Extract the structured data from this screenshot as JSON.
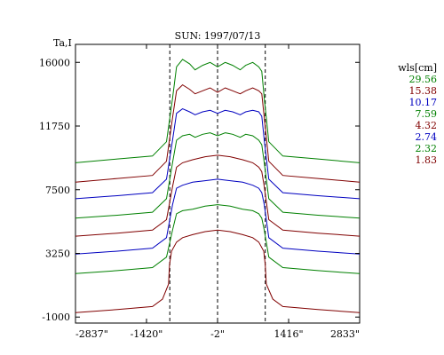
{
  "chart_data": {
    "type": "line",
    "title": "SUN: 1997/07/13",
    "ylabel": "Ta,I",
    "xlabel": "",
    "xlim": [
      -2837,
      2833
    ],
    "ylim": [
      -1400,
      17200
    ],
    "x_ticks": [
      {
        "value": -2837,
        "label": "-2837\""
      },
      {
        "value": -1420,
        "label": "-1420\""
      },
      {
        "value": -2,
        "label": "-2\""
      },
      {
        "value": 1416,
        "label": "1416\""
      },
      {
        "value": 2833,
        "label": "2833\""
      }
    ],
    "y_ticks": [
      {
        "value": 16000,
        "label": "16000"
      },
      {
        "value": 11750,
        "label": "11750"
      },
      {
        "value": 7500,
        "label": "7500"
      },
      {
        "value": 3250,
        "label": "3250"
      },
      {
        "value": -1000,
        "label": "-1000"
      }
    ],
    "vlines": [
      -955,
      -2,
      950
    ],
    "legend_title": "wls[cm]",
    "legend_position": "right",
    "grid": false,
    "series": [
      {
        "name": "29.56",
        "color": "#008000",
        "points": [
          [
            -2837,
            9300
          ],
          [
            -2000,
            9550
          ],
          [
            -1300,
            9750
          ],
          [
            -1020,
            10700
          ],
          [
            -900,
            13600
          ],
          [
            -820,
            15700
          ],
          [
            -700,
            16200
          ],
          [
            -560,
            15900
          ],
          [
            -450,
            15500
          ],
          [
            -300,
            15800
          ],
          [
            -150,
            16000
          ],
          [
            -2,
            15700
          ],
          [
            150,
            16000
          ],
          [
            300,
            15800
          ],
          [
            450,
            15500
          ],
          [
            560,
            15800
          ],
          [
            700,
            16000
          ],
          [
            820,
            15700
          ],
          [
            880,
            15400
          ],
          [
            930,
            13600
          ],
          [
            1020,
            10700
          ],
          [
            1300,
            9750
          ],
          [
            2000,
            9550
          ],
          [
            2833,
            9300
          ]
        ]
      },
      {
        "name": "15.38",
        "color": "#800000",
        "points": [
          [
            -2837,
            8000
          ],
          [
            -2000,
            8250
          ],
          [
            -1300,
            8450
          ],
          [
            -1020,
            9400
          ],
          [
            -900,
            12300
          ],
          [
            -820,
            14100
          ],
          [
            -700,
            14500
          ],
          [
            -560,
            14200
          ],
          [
            -450,
            13900
          ],
          [
            -300,
            14100
          ],
          [
            -150,
            14300
          ],
          [
            -2,
            14000
          ],
          [
            150,
            14300
          ],
          [
            300,
            14100
          ],
          [
            450,
            13900
          ],
          [
            560,
            14100
          ],
          [
            700,
            14300
          ],
          [
            820,
            14100
          ],
          [
            880,
            13900
          ],
          [
            930,
            12300
          ],
          [
            1020,
            9400
          ],
          [
            1300,
            8450
          ],
          [
            2000,
            8250
          ],
          [
            2833,
            8000
          ]
        ]
      },
      {
        "name": "10.17",
        "color": "#0000c0",
        "points": [
          [
            -2837,
            6900
          ],
          [
            -2000,
            7100
          ],
          [
            -1300,
            7300
          ],
          [
            -1020,
            8200
          ],
          [
            -900,
            10800
          ],
          [
            -820,
            12600
          ],
          [
            -700,
            12900
          ],
          [
            -560,
            12700
          ],
          [
            -450,
            12500
          ],
          [
            -300,
            12700
          ],
          [
            -150,
            12800
          ],
          [
            -2,
            12600
          ],
          [
            150,
            12800
          ],
          [
            300,
            12700
          ],
          [
            450,
            12500
          ],
          [
            560,
            12700
          ],
          [
            700,
            12800
          ],
          [
            820,
            12700
          ],
          [
            880,
            12400
          ],
          [
            930,
            10800
          ],
          [
            1020,
            8200
          ],
          [
            1300,
            7300
          ],
          [
            2000,
            7100
          ],
          [
            2833,
            6900
          ]
        ]
      },
      {
        "name": "7.59",
        "color": "#008000",
        "points": [
          [
            -2837,
            5600
          ],
          [
            -2000,
            5800
          ],
          [
            -1300,
            6000
          ],
          [
            -1020,
            6900
          ],
          [
            -900,
            9300
          ],
          [
            -820,
            10800
          ],
          [
            -700,
            11100
          ],
          [
            -560,
            11200
          ],
          [
            -450,
            11000
          ],
          [
            -300,
            11200
          ],
          [
            -150,
            11300
          ],
          [
            -2,
            11100
          ],
          [
            150,
            11300
          ],
          [
            300,
            11200
          ],
          [
            450,
            11000
          ],
          [
            560,
            11200
          ],
          [
            700,
            11100
          ],
          [
            820,
            10800
          ],
          [
            880,
            10500
          ],
          [
            930,
            9300
          ],
          [
            1020,
            6900
          ],
          [
            1300,
            6000
          ],
          [
            2000,
            5800
          ],
          [
            2833,
            5600
          ]
        ]
      },
      {
        "name": "4.32",
        "color": "#800000",
        "points": [
          [
            -2837,
            4400
          ],
          [
            -2000,
            4600
          ],
          [
            -1300,
            4800
          ],
          [
            -1020,
            5500
          ],
          [
            -900,
            7700
          ],
          [
            -820,
            9000
          ],
          [
            -700,
            9300
          ],
          [
            -500,
            9500
          ],
          [
            -250,
            9700
          ],
          [
            -2,
            9800
          ],
          [
            250,
            9700
          ],
          [
            500,
            9500
          ],
          [
            700,
            9300
          ],
          [
            820,
            9000
          ],
          [
            880,
            8700
          ],
          [
            930,
            7700
          ],
          [
            1020,
            5500
          ],
          [
            1300,
            4800
          ],
          [
            2000,
            4600
          ],
          [
            2833,
            4400
          ]
        ]
      },
      {
        "name": "2.74",
        "color": "#0000c0",
        "points": [
          [
            -2837,
            3200
          ],
          [
            -2000,
            3400
          ],
          [
            -1300,
            3600
          ],
          [
            -1020,
            4300
          ],
          [
            -900,
            6500
          ],
          [
            -820,
            7600
          ],
          [
            -700,
            7800
          ],
          [
            -500,
            8000
          ],
          [
            -250,
            8100
          ],
          [
            -2,
            8200
          ],
          [
            250,
            8100
          ],
          [
            500,
            8000
          ],
          [
            700,
            7800
          ],
          [
            820,
            7600
          ],
          [
            880,
            7300
          ],
          [
            930,
            6500
          ],
          [
            1020,
            4300
          ],
          [
            1300,
            3600
          ],
          [
            2000,
            3400
          ],
          [
            2833,
            3200
          ]
        ]
      },
      {
        "name": "2.32",
        "color": "#008000",
        "points": [
          [
            -2837,
            1900
          ],
          [
            -2000,
            2100
          ],
          [
            -1300,
            2300
          ],
          [
            -1020,
            3000
          ],
          [
            -900,
            4800
          ],
          [
            -820,
            5900
          ],
          [
            -700,
            6100
          ],
          [
            -500,
            6200
          ],
          [
            -250,
            6400
          ],
          [
            -2,
            6500
          ],
          [
            250,
            6400
          ],
          [
            500,
            6200
          ],
          [
            700,
            6100
          ],
          [
            820,
            5900
          ],
          [
            880,
            5600
          ],
          [
            930,
            4800
          ],
          [
            1020,
            3000
          ],
          [
            1300,
            2300
          ],
          [
            2000,
            2100
          ],
          [
            2833,
            1900
          ]
        ]
      },
      {
        "name": "1.83",
        "color": "#800000",
        "points": [
          [
            -2837,
            -700
          ],
          [
            -2000,
            -500
          ],
          [
            -1300,
            -300
          ],
          [
            -1100,
            200
          ],
          [
            -980,
            1200
          ],
          [
            -960,
            2500
          ],
          [
            -920,
            3400
          ],
          [
            -820,
            4000
          ],
          [
            -700,
            4300
          ],
          [
            -500,
            4500
          ],
          [
            -250,
            4700
          ],
          [
            -2,
            4800
          ],
          [
            250,
            4700
          ],
          [
            500,
            4500
          ],
          [
            700,
            4300
          ],
          [
            820,
            4000
          ],
          [
            920,
            3400
          ],
          [
            950,
            2500
          ],
          [
            970,
            1200
          ],
          [
            1100,
            200
          ],
          [
            1300,
            -300
          ],
          [
            2000,
            -500
          ],
          [
            2833,
            -700
          ]
        ]
      }
    ]
  }
}
